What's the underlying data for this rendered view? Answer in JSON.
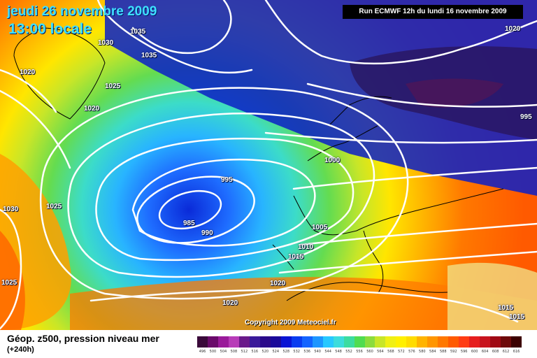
{
  "header": {
    "date_line": "jeudi 26 novembre 2009",
    "time_line": "13:00 locale",
    "run_info": "Run ECMWF 12h du lundi 16 novembre 2009"
  },
  "copyright": "Copyright 2009 Meteociel.fr",
  "isobar_labels": [
    "1035",
    "1030",
    "1035",
    "1020",
    "1025",
    "1020",
    "1030",
    "1025",
    "1025",
    "995",
    "985",
    "990",
    "1005",
    "1010",
    "1015",
    "1020",
    "1020",
    "1000",
    "1020",
    "995",
    "1015",
    "1015"
  ],
  "legend": {
    "title": "Géop. z500, pression niveau mer",
    "range": "(+240h)",
    "scale_labels": [
      "496",
      "500",
      "504",
      "508",
      "512",
      "516",
      "520",
      "524",
      "528",
      "532",
      "536",
      "540",
      "544",
      "548",
      "552",
      "556",
      "560",
      "564",
      "568",
      "572",
      "576",
      "580",
      "584",
      "588",
      "592",
      "596",
      "600",
      "604",
      "608",
      "612",
      "616"
    ],
    "scale_colors": [
      "#3a0a3a",
      "#6a0a6a",
      "#9a1a9a",
      "#b83cb8",
      "#6a1a8a",
      "#3a1a9a",
      "#2a0a8a",
      "#1a0a9a",
      "#0a14d4",
      "#0a3cf0",
      "#1464ff",
      "#1e96ff",
      "#28c8ff",
      "#3cdcdc",
      "#3cdca0",
      "#50dc50",
      "#8cdc3c",
      "#c8e628",
      "#f0f014",
      "#fff000",
      "#ffdc00",
      "#ffb400",
      "#ff9600",
      "#ff7800",
      "#ff5a00",
      "#ff3c14",
      "#e61e1e",
      "#c8141e",
      "#a00a14",
      "#6e0a0a",
      "#3c0000"
    ]
  }
}
